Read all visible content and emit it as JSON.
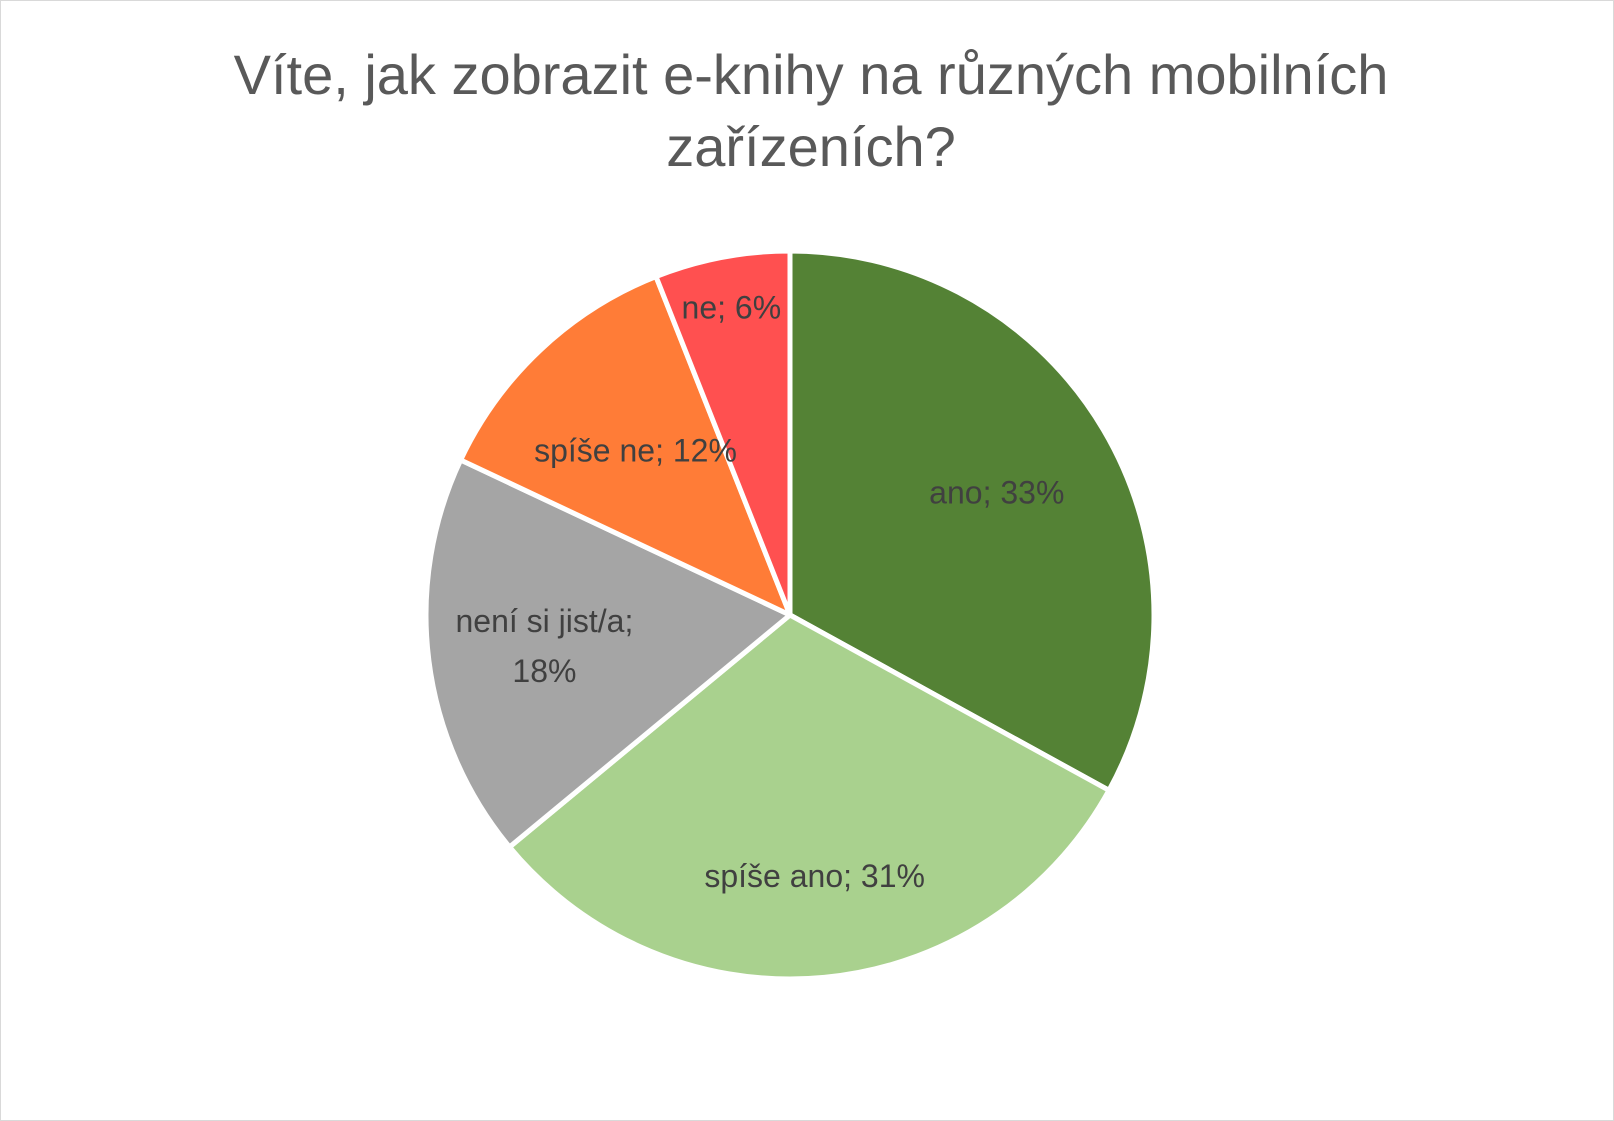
{
  "chart_data": {
    "type": "pie",
    "title": "Víte, jak zobrazit e-knihy na různých mobilních zařízeních?",
    "start_angle_deg": 0,
    "direction": "clockwise",
    "slices": [
      {
        "label": "ano",
        "value": 33,
        "display": "ano; 33%",
        "color": "#548235"
      },
      {
        "label": "spíše ano",
        "value": 31,
        "display": "spíše ano; 31%",
        "color": "#A9D18E"
      },
      {
        "label": "není si jist/a",
        "value": 18,
        "display": "není si jist/a; 18%",
        "color": "#A5A5A5"
      },
      {
        "label": "spíše ne",
        "value": 12,
        "display": "spíše ne; 12%",
        "color": "#FF7C37"
      },
      {
        "label": "ne",
        "value": 6,
        "display": "ne; 6%",
        "color": "#FF5050"
      }
    ],
    "legend": "none",
    "data_labels": "inside"
  }
}
